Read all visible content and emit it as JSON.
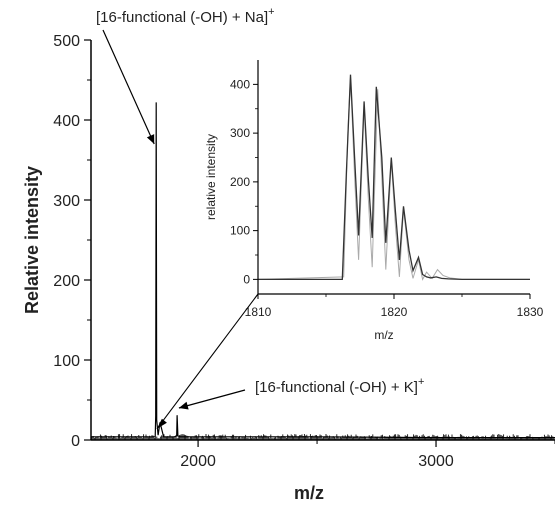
{
  "chart_data": [
    {
      "type": "line",
      "xlabel": "m/z",
      "ylabel": "Relative intensity",
      "xlim": [
        1550,
        3500
      ],
      "ylim": [
        0,
        500
      ],
      "xticks": [
        2000,
        3000
      ],
      "yticks": [
        0,
        100,
        200,
        300,
        400,
        500
      ],
      "grid": false,
      "series": [
        {
          "x": [
            1550,
            1820,
            1822,
            1824,
            1826,
            1832,
            1840,
            1855,
            1900,
            1910,
            1912,
            1915,
            1925,
            2000,
            2500,
            3000,
            3500
          ],
          "y": [
            4,
            4,
            30,
            422,
            25,
            6,
            22,
            4,
            4,
            5,
            31,
            5,
            4,
            4,
            4,
            3,
            3
          ]
        }
      ],
      "annotations": [
        {
          "text": "[16-functional (-OH) + Na]",
          "superscript": "+",
          "points_to": {
            "x": 1824,
            "y": 370
          }
        },
        {
          "text": "[16-functional (-OH) + K]",
          "superscript": "+",
          "points_to": {
            "x": 1911,
            "y": 30
          }
        }
      ]
    },
    {
      "type": "line",
      "inset": true,
      "xlabel": "m/z",
      "ylabel": "relative intensity",
      "xlim": [
        1810,
        1830
      ],
      "ylim": [
        -30,
        450
      ],
      "xticks": [
        1810,
        1820,
        1830
      ],
      "yticks": [
        0,
        100,
        200,
        300,
        400
      ],
      "series": [
        {
          "color": "#333333",
          "x": [
            1810,
            1816.2,
            1816.5,
            1816.8,
            1817.1,
            1817.4,
            1817.8,
            1818.1,
            1818.4,
            1818.7,
            1819.1,
            1819.4,
            1819.8,
            1820.1,
            1820.4,
            1820.7,
            1821.1,
            1821.4,
            1821.8,
            1822.1,
            1822.4,
            1822.7,
            1823.1,
            1823.5,
            1824.0,
            1825.0,
            1830
          ],
          "y": [
            0,
            0,
            220,
            420,
            250,
            90,
            365,
            210,
            85,
            395,
            250,
            75,
            250,
            140,
            40,
            150,
            60,
            18,
            45,
            10,
            5,
            3,
            5,
            2,
            1,
            0,
            0
          ]
        },
        {
          "color": "#aaaaaa",
          "x": [
            1810,
            1816.3,
            1816.6,
            1816.8,
            1817.1,
            1817.4,
            1817.8,
            1818.1,
            1818.4,
            1818.8,
            1819.1,
            1819.4,
            1819.8,
            1820.1,
            1820.4,
            1820.7,
            1821.1,
            1821.4,
            1821.8,
            1822.1,
            1822.4,
            1822.8,
            1823.2,
            1823.6,
            1824.1,
            1825.0,
            1830
          ],
          "y": [
            0,
            5,
            300,
            415,
            210,
            40,
            355,
            170,
            25,
            390,
            210,
            20,
            245,
            110,
            5,
            145,
            40,
            2,
            40,
            0,
            15,
            2,
            20,
            8,
            3,
            0,
            0
          ]
        }
      ]
    }
  ]
}
